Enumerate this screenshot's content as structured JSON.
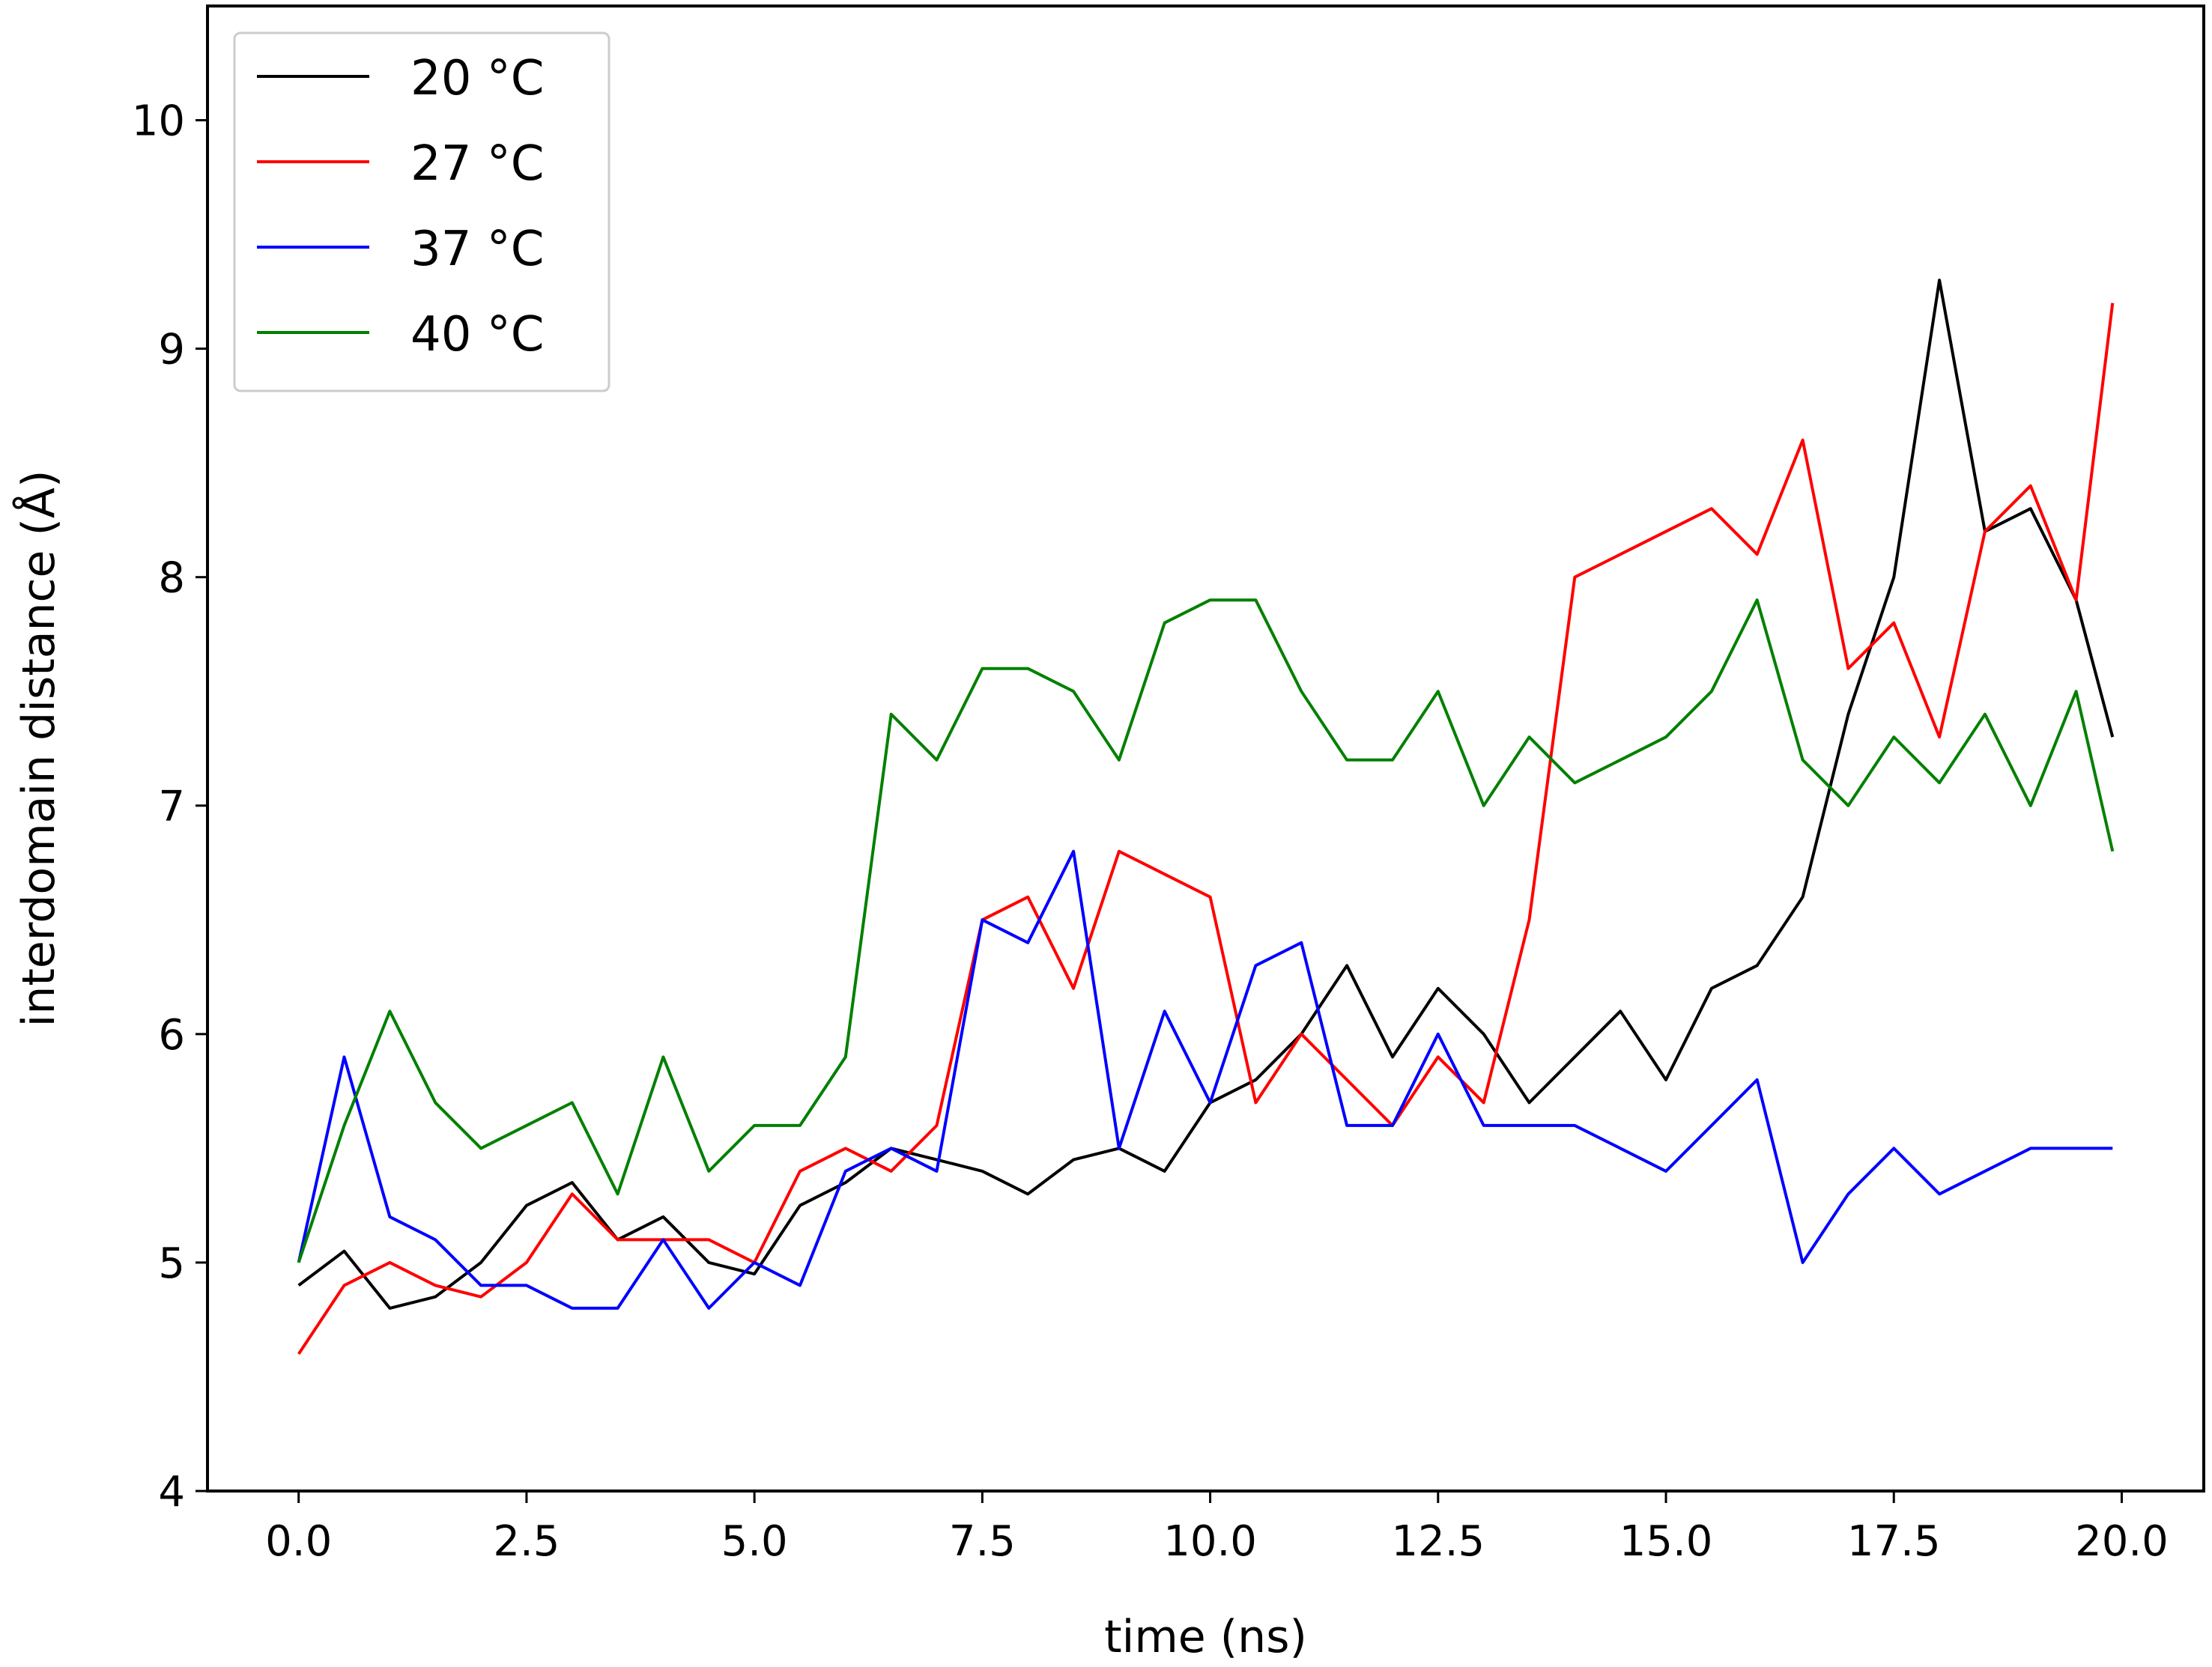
{
  "chart_data": {
    "type": "line",
    "xlabel": "time (ns)",
    "ylabel": "interdomain distance (Å)",
    "xlim": [
      -1.0,
      20.9
    ],
    "ylim": [
      4,
      10.5
    ],
    "xticks": [
      0.0,
      2.5,
      5.0,
      7.5,
      10.0,
      12.5,
      15.0,
      17.5,
      20.0
    ],
    "xtick_labels": [
      "0.0",
      "2.5",
      "5.0",
      "7.5",
      "10.0",
      "12.5",
      "15.0",
      "17.5",
      "20.0"
    ],
    "yticks": [
      4,
      5,
      6,
      7,
      8,
      9,
      10
    ],
    "ytick_labels": [
      "4",
      "5",
      "6",
      "7",
      "8",
      "9",
      "10"
    ],
    "grid": false,
    "legend_position": "top-left",
    "series": [
      {
        "name": "20 °C",
        "color": "#000000",
        "x": [
          0,
          0.5,
          1,
          1.5,
          2,
          2.5,
          3,
          3.5,
          4,
          4.5,
          5,
          5.5,
          6,
          6.5,
          7,
          7.5,
          8,
          8.5,
          9,
          9.5,
          10,
          10.5,
          11,
          11.5,
          12,
          12.5,
          13,
          13.5,
          14,
          14.5,
          15,
          15.5,
          16,
          16.5,
          17,
          17.5,
          18,
          18.5,
          19,
          19.5,
          19.9
        ],
        "y": [
          4.9,
          5.05,
          4.8,
          4.85,
          5.0,
          5.25,
          5.35,
          5.1,
          5.2,
          5.0,
          4.95,
          5.25,
          5.35,
          5.5,
          5.45,
          5.4,
          5.3,
          5.45,
          5.5,
          5.4,
          5.7,
          5.8,
          6.0,
          6.3,
          5.9,
          6.2,
          6.0,
          5.7,
          5.9,
          6.1,
          5.8,
          6.2,
          6.3,
          6.6,
          7.4,
          8.0,
          9.3,
          8.2,
          8.3,
          7.9,
          7.3
        ]
      },
      {
        "name": "27 °C",
        "color": "#ff0000",
        "x": [
          0,
          0.5,
          1,
          1.5,
          2,
          2.5,
          3,
          3.5,
          4,
          4.5,
          5,
          5.5,
          6,
          6.5,
          7,
          7.5,
          8,
          8.5,
          9,
          9.5,
          10,
          10.5,
          11,
          11.5,
          12,
          12.5,
          13,
          13.5,
          14,
          14.5,
          15,
          15.5,
          16,
          16.5,
          17,
          17.5,
          18,
          18.5,
          19,
          19.5,
          19.9
        ],
        "y": [
          4.6,
          4.9,
          5.0,
          4.9,
          4.85,
          5.0,
          5.3,
          5.1,
          5.1,
          5.1,
          5.0,
          5.4,
          5.5,
          5.4,
          5.6,
          6.5,
          6.6,
          6.2,
          6.8,
          6.7,
          6.6,
          5.7,
          6.0,
          5.8,
          5.6,
          5.9,
          5.7,
          6.5,
          8.0,
          8.1,
          8.2,
          8.3,
          8.1,
          8.6,
          7.6,
          7.8,
          7.3,
          8.2,
          8.4,
          7.9,
          9.2
        ]
      },
      {
        "name": "37 °C",
        "color": "#0000ff",
        "x": [
          0,
          0.5,
          1,
          1.5,
          2,
          2.5,
          3,
          3.5,
          4,
          4.5,
          5,
          5.5,
          6,
          6.5,
          7,
          7.5,
          8,
          8.5,
          9,
          9.5,
          10,
          10.5,
          11,
          11.5,
          12,
          12.5,
          13,
          13.5,
          14,
          14.5,
          15,
          15.5,
          16,
          16.5,
          17,
          17.5,
          18,
          18.5,
          19,
          19.5,
          19.9
        ],
        "y": [
          5.0,
          5.9,
          5.2,
          5.1,
          4.9,
          4.9,
          4.8,
          4.8,
          5.1,
          4.8,
          5.0,
          4.9,
          5.4,
          5.5,
          5.4,
          6.5,
          6.4,
          6.8,
          5.5,
          6.1,
          5.7,
          6.3,
          6.4,
          5.6,
          5.6,
          6.0,
          5.6,
          5.6,
          5.6,
          5.5,
          5.4,
          5.6,
          5.8,
          5.0,
          5.3,
          5.5,
          5.3,
          5.4,
          5.5,
          5.5,
          5.5
        ]
      },
      {
        "name": "40 °C",
        "color": "#008000",
        "x": [
          0,
          0.5,
          1,
          1.5,
          2,
          2.5,
          3,
          3.5,
          4,
          4.5,
          5,
          5.5,
          6,
          6.5,
          7,
          7.5,
          8,
          8.5,
          9,
          9.5,
          10,
          10.5,
          11,
          11.5,
          12,
          12.5,
          13,
          13.5,
          14,
          14.5,
          15,
          15.5,
          16,
          16.5,
          17,
          17.5,
          18,
          18.5,
          19,
          19.5,
          19.9
        ],
        "y": [
          5.0,
          5.6,
          6.1,
          5.7,
          5.5,
          5.6,
          5.7,
          5.3,
          5.9,
          5.4,
          5.6,
          5.6,
          5.9,
          7.4,
          7.2,
          7.6,
          7.6,
          7.5,
          7.2,
          7.8,
          7.9,
          7.9,
          7.5,
          7.2,
          7.2,
          7.5,
          7.0,
          7.3,
          7.1,
          7.2,
          7.3,
          7.5,
          7.9,
          7.2,
          7.0,
          7.3,
          7.1,
          7.4,
          7.0,
          7.5,
          6.8
        ]
      }
    ]
  }
}
